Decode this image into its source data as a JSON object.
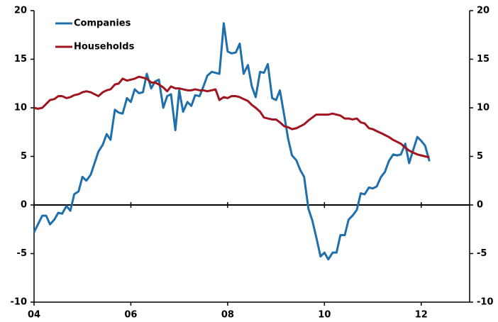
{
  "chart_data": {
    "type": "line",
    "x": [
      2004,
      2004.08,
      2004.17,
      2004.25,
      2004.33,
      2004.42,
      2004.5,
      2004.58,
      2004.67,
      2004.75,
      2004.83,
      2004.92,
      2005,
      2005.08,
      2005.17,
      2005.25,
      2005.33,
      2005.42,
      2005.5,
      2005.58,
      2005.67,
      2005.75,
      2005.83,
      2005.92,
      2006,
      2006.08,
      2006.17,
      2006.25,
      2006.33,
      2006.42,
      2006.5,
      2006.58,
      2006.67,
      2006.75,
      2006.83,
      2006.92,
      2007,
      2007.08,
      2007.17,
      2007.25,
      2007.33,
      2007.42,
      2007.5,
      2007.58,
      2007.67,
      2007.75,
      2007.83,
      2007.92,
      2008,
      2008.08,
      2008.17,
      2008.25,
      2008.33,
      2008.42,
      2008.5,
      2008.58,
      2008.67,
      2008.75,
      2008.83,
      2008.92,
      2009,
      2009.08,
      2009.17,
      2009.25,
      2009.33,
      2009.42,
      2009.5,
      2009.58,
      2009.67,
      2009.75,
      2009.83,
      2009.92,
      2010,
      2010.08,
      2010.17,
      2010.25,
      2010.33,
      2010.42,
      2010.5,
      2010.58,
      2010.67,
      2010.75,
      2010.83,
      2010.92,
      2011,
      2011.08,
      2011.17,
      2011.25,
      2011.33,
      2011.42,
      2011.5,
      2011.58,
      2011.67,
      2011.75,
      2011.83,
      2011.92,
      2012,
      2012.08,
      2012.17
    ],
    "series": [
      {
        "name": "Companies",
        "color": "#1f6fad",
        "values": [
          -2.8,
          -2.0,
          -1.1,
          -1.1,
          -2.0,
          -1.5,
          -0.8,
          -0.9,
          -0.1,
          -0.6,
          1.1,
          1.4,
          2.9,
          2.5,
          3.1,
          4.3,
          5.5,
          6.2,
          7.3,
          6.7,
          9.8,
          9.5,
          9.4,
          11.0,
          10.6,
          11.9,
          11.5,
          11.6,
          13.5,
          12.0,
          12.7,
          12.9,
          10.0,
          11.2,
          11.4,
          7.7,
          11.8,
          9.6,
          10.6,
          10.2,
          11.3,
          11.2,
          12.2,
          13.3,
          13.7,
          13.6,
          13.5,
          18.7,
          15.8,
          15.6,
          15.7,
          16.6,
          13.5,
          14.4,
          12.2,
          11.1,
          13.7,
          13.6,
          14.5,
          11.0,
          10.8,
          11.8,
          9.2,
          6.8,
          5.1,
          4.6,
          3.6,
          2.9,
          -0.4,
          -1.6,
          -3.3,
          -5.3,
          -4.9,
          -5.6,
          -4.9,
          -4.9,
          -3.1,
          -3.1,
          -1.5,
          -1.1,
          -0.5,
          1.2,
          1.1,
          1.8,
          1.7,
          1.9,
          2.9,
          3.4,
          4.5,
          5.2,
          5.1,
          5.2,
          6.3,
          4.3,
          5.6,
          7.0,
          6.6,
          6.1,
          4.5
        ]
      },
      {
        "name": "Households",
        "color": "#a0151f",
        "values": [
          10.0,
          9.9,
          10.0,
          10.4,
          10.8,
          10.9,
          11.2,
          11.2,
          11.0,
          11.1,
          11.3,
          11.4,
          11.6,
          11.7,
          11.6,
          11.4,
          11.2,
          11.6,
          11.8,
          11.9,
          12.4,
          12.5,
          13.0,
          12.8,
          12.9,
          13.0,
          13.2,
          13.1,
          13.0,
          12.6,
          12.6,
          12.4,
          12.1,
          11.7,
          12.2,
          12.0,
          12.0,
          11.9,
          11.8,
          11.8,
          11.9,
          11.8,
          11.8,
          11.7,
          11.8,
          11.9,
          10.8,
          11.1,
          11.0,
          11.2,
          11.2,
          11.1,
          10.9,
          10.7,
          10.3,
          10.0,
          9.6,
          9.0,
          8.9,
          8.8,
          8.8,
          8.5,
          8.1,
          8.0,
          7.8,
          7.9,
          8.1,
          8.3,
          8.7,
          9.0,
          9.3,
          9.3,
          9.3,
          9.3,
          9.4,
          9.3,
          9.2,
          8.9,
          8.9,
          8.8,
          8.9,
          8.5,
          8.4,
          7.9,
          7.8,
          7.6,
          7.4,
          7.2,
          7.0,
          6.7,
          6.5,
          6.3,
          5.9,
          5.6,
          5.4,
          5.2,
          5.1,
          5.0,
          4.9
        ]
      }
    ],
    "xlim": [
      2004,
      2013
    ],
    "xticks": [
      {
        "value": 2004,
        "label": "04"
      },
      {
        "value": 2006,
        "label": "06"
      },
      {
        "value": 2008,
        "label": "08"
      },
      {
        "value": 2010,
        "label": "10"
      },
      {
        "value": 2012,
        "label": "12"
      }
    ],
    "ylim": [
      -10,
      20
    ],
    "yticks": [
      -10,
      -5,
      0,
      5,
      10,
      15,
      20
    ],
    "legend": "top-left"
  }
}
